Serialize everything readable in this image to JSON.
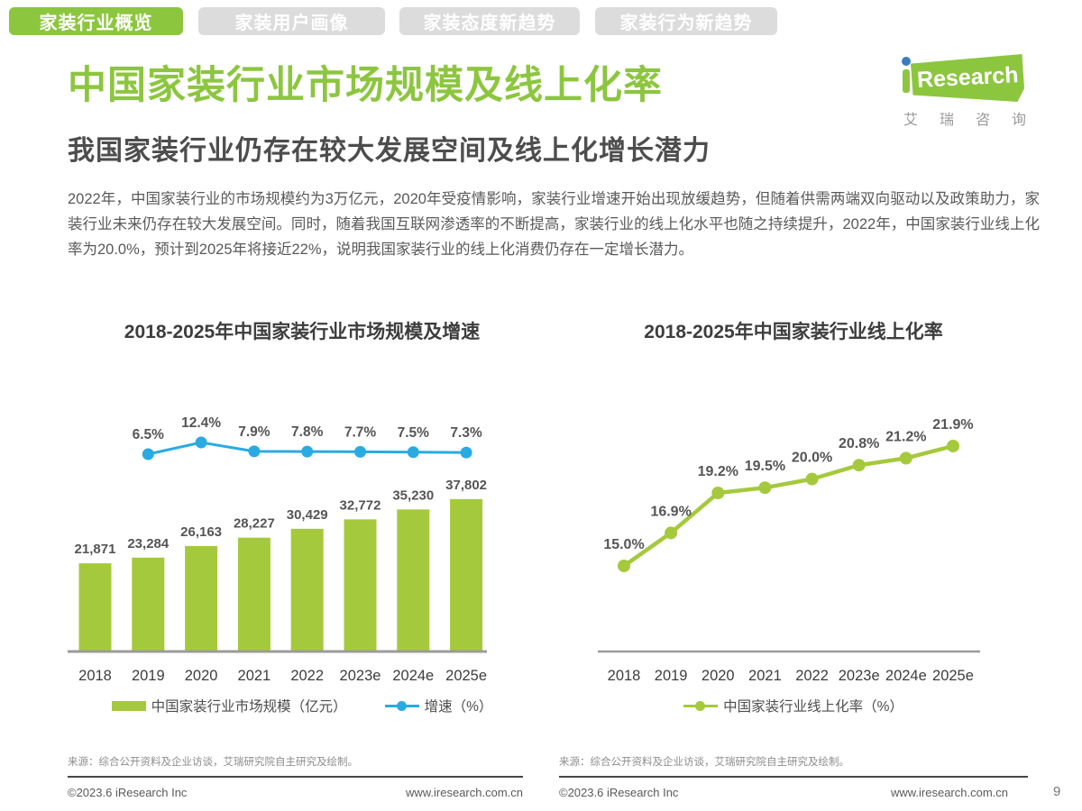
{
  "tabs": [
    {
      "label": "家装行业概览",
      "active": true
    },
    {
      "label": "家装用户画像",
      "active": false
    },
    {
      "label": "家装态度新趋势",
      "active": false
    },
    {
      "label": "家装行为新趋势",
      "active": false
    }
  ],
  "logo": {
    "research": "Research",
    "subtext": "艾瑞咨询"
  },
  "page": {
    "title": "中国家装行业市场规模及线上化率",
    "subtitle": "我国家装行业仍存在较大发展空间及线上化增长潜力",
    "paragraph": "2022年，中国家装行业的市场规模约为3万亿元，2020年受疫情影响，家装行业增速开始出现放缓趋势，但随着供需两端双向驱动以及政策助力，家装行业未来仍存在较大发展空间。同时，随着我国互联网渗透率的不断提高，家装行业的线上化水平也随之持续提升，2022年，中国家装行业线上化率为20.0%，预计到2025年将接近22%，说明我国家装行业的线上化消费仍存在一定增长潜力。"
  },
  "chart_data": [
    {
      "type": "bar+line",
      "title": "2018-2025年中国家装行业市场规模及增速",
      "categories": [
        "2018",
        "2019",
        "2020",
        "2021",
        "2022",
        "2023e",
        "2024e",
        "2025e"
      ],
      "series": [
        {
          "name": "中国家装行业市场规模（亿元）",
          "type": "bar",
          "values": [
            21871,
            23284,
            26163,
            28227,
            30429,
            32772,
            35230,
            37802
          ],
          "labels": [
            "21,871",
            "23,284",
            "26,163",
            "28,227",
            "30,429",
            "32,772",
            "35,230",
            "37,802"
          ]
        },
        {
          "name": "增速（%）",
          "type": "line",
          "values": [
            null,
            6.5,
            12.4,
            7.9,
            7.8,
            7.7,
            7.5,
            7.3
          ],
          "labels": [
            null,
            "6.5%",
            "12.4%",
            "7.9%",
            "7.8%",
            "7.7%",
            "7.5%",
            "7.3%"
          ]
        }
      ],
      "legend_position": "bottom",
      "grid": false
    },
    {
      "type": "line",
      "title": "2018-2025年中国家装行业线上化率",
      "categories": [
        "2018",
        "2019",
        "2020",
        "2021",
        "2022",
        "2023e",
        "2024e",
        "2025e"
      ],
      "series": [
        {
          "name": "中国家装行业线上化率（%）",
          "type": "line",
          "values": [
            15.0,
            16.9,
            19.2,
            19.5,
            20.0,
            20.8,
            21.2,
            21.9
          ],
          "labels": [
            "15.0%",
            "16.9%",
            "19.2%",
            "19.5%",
            "20.0%",
            "20.8%",
            "21.2%",
            "21.9%"
          ]
        }
      ],
      "legend_position": "bottom",
      "grid": false,
      "ylim": [
        14,
        23
      ]
    }
  ],
  "sources": {
    "left": "来源：综合公开资料及企业访谈，艾瑞研究院自主研究及绘制。",
    "right": "来源：综合公开资料及企业访谈，艾瑞研究院自主研究及绘制。"
  },
  "footer": {
    "copyright": "©2023.6 iResearch Inc",
    "site": "www.iresearch.com.cn",
    "page_number": "9"
  },
  "colors": {
    "accent_green": "#8CC63F",
    "chart_green": "#A5C93C",
    "line_blue": "#29ABE2",
    "logo_dot_blue": "#3B7CC0",
    "axis_gray": "#9b9b9b",
    "label_gray": "#555555",
    "tick_gray": "#3d3d3d"
  }
}
